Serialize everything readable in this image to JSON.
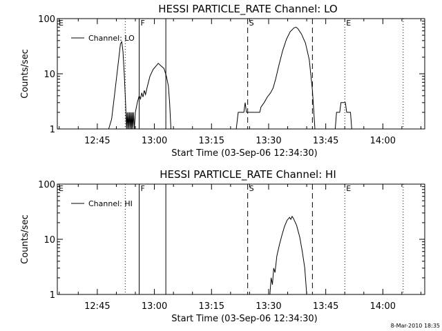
{
  "chart_data": [
    {
      "type": "line",
      "title": "HESSI PARTICLE_RATE Channel: LO",
      "xlabel": "Start Time (03-Sep-06 12:34:30)",
      "ylabel": "Counts/sec",
      "yscale": "log",
      "xlim": [
        "12:34:30",
        "14:11:00"
      ],
      "ylim": [
        1,
        100
      ],
      "x_ticks": [
        "12:45",
        "13:00",
        "13:15",
        "13:30",
        "13:45",
        "14:00"
      ],
      "y_ticks": [
        "1",
        "10",
        "100"
      ],
      "legend": "top-left",
      "grid": false,
      "series": [
        {
          "name": "Channel: LO",
          "points": [
            [
              "12:48:00",
              1
            ],
            [
              "12:48:45",
              1.5
            ],
            [
              "12:49:30",
              4
            ],
            [
              "12:50:10",
              10
            ],
            [
              "12:50:45",
              22
            ],
            [
              "12:51:05",
              35
            ],
            [
              "12:51:25",
              38
            ],
            [
              "12:51:45",
              25
            ],
            [
              "12:52:05",
              10
            ],
            [
              "12:52:25",
              3
            ],
            [
              "12:52:40",
              1
            ],
            [
              "12:52:50",
              2
            ],
            [
              "12:53:00",
              1
            ],
            [
              "12:53:10",
              2
            ],
            [
              "12:53:20",
              1
            ],
            [
              "12:53:30",
              2
            ],
            [
              "12:53:40",
              1
            ],
            [
              "12:53:50",
              2
            ],
            [
              "12:54:00",
              1
            ],
            [
              "12:54:10",
              2
            ],
            [
              "12:54:20",
              1
            ],
            [
              "12:54:30",
              2
            ],
            [
              "12:54:45",
              1
            ],
            [
              "12:55:00",
              2
            ],
            [
              "12:55:30",
              3
            ],
            [
              "12:56:00",
              4
            ],
            [
              "12:56:20",
              3.5
            ],
            [
              "12:56:40",
              4.5
            ],
            [
              "12:57:00",
              3.8
            ],
            [
              "12:57:20",
              5
            ],
            [
              "12:57:40",
              4.2
            ],
            [
              "12:58:10",
              6
            ],
            [
              "12:58:50",
              9
            ],
            [
              "12:59:40",
              12
            ],
            [
              "13:00:30",
              14
            ],
            [
              "13:01:00",
              15.5
            ],
            [
              "13:01:40",
              14
            ],
            [
              "13:02:30",
              12.5
            ],
            [
              "13:03:10",
              9
            ],
            [
              "13:03:40",
              6
            ],
            [
              "13:04:00",
              3
            ],
            [
              "13:04:20",
              1
            ],
            [
              "13:21:30",
              1
            ],
            [
              "13:22:00",
              2
            ],
            [
              "13:23:30",
              2
            ],
            [
              "13:23:50",
              3
            ],
            [
              "13:24:10",
              2
            ],
            [
              "13:25:00",
              2
            ],
            [
              "13:26:00",
              2
            ],
            [
              "13:27:00",
              2
            ],
            [
              "13:27:40",
              2
            ],
            [
              "13:28:00",
              2.5
            ],
            [
              "13:28:50",
              3
            ],
            [
              "13:29:40",
              3.8
            ],
            [
              "13:30:30",
              4.5
            ],
            [
              "13:31:10",
              5.5
            ],
            [
              "13:31:50",
              8
            ],
            [
              "13:32:40",
              14
            ],
            [
              "13:33:40",
              26
            ],
            [
              "13:34:40",
              42
            ],
            [
              "13:35:40",
              58
            ],
            [
              "13:36:40",
              68
            ],
            [
              "13:37:10",
              70
            ],
            [
              "13:37:40",
              66
            ],
            [
              "13:38:40",
              52
            ],
            [
              "13:39:40",
              36
            ],
            [
              "13:40:40",
              18
            ],
            [
              "13:41:30",
              5
            ],
            [
              "13:42:10",
              1
            ],
            [
              "13:47:30",
              1
            ],
            [
              "13:47:50",
              2
            ],
            [
              "13:48:40",
              2
            ],
            [
              "13:49:00",
              3
            ],
            [
              "13:50:10",
              3
            ],
            [
              "13:50:30",
              2
            ],
            [
              "13:51:30",
              2
            ],
            [
              "13:51:50",
              1
            ]
          ]
        }
      ],
      "markers": [
        {
          "time": "12:34:30",
          "label": "E",
          "style": "none"
        },
        {
          "time": "12:52:20",
          "label": "",
          "style": "dotted"
        },
        {
          "time": "12:56:00",
          "label": "F",
          "style": "solid"
        },
        {
          "time": "13:03:00",
          "label": "",
          "style": "solid"
        },
        {
          "time": "13:24:30",
          "label": "S",
          "style": "dashed"
        },
        {
          "time": "13:41:30",
          "label": "",
          "style": "dashed"
        },
        {
          "time": "13:50:00",
          "label": "E",
          "style": "dotted"
        },
        {
          "time": "14:05:20",
          "label": "",
          "style": "dotted"
        }
      ]
    },
    {
      "type": "line",
      "title": "HESSI PARTICLE_RATE Channel: HI",
      "xlabel": "Start Time (03-Sep-06 12:34:30)",
      "ylabel": "Counts/sec",
      "yscale": "log",
      "xlim": [
        "12:34:30",
        "14:11:00"
      ],
      "ylim": [
        1,
        100
      ],
      "x_ticks": [
        "12:45",
        "13:00",
        "13:15",
        "13:30",
        "13:45",
        "14:00"
      ],
      "y_ticks": [
        "1",
        "10",
        "100"
      ],
      "legend": "top-left",
      "grid": false,
      "series": [
        {
          "name": "Channel: HI",
          "points": [
            [
              "13:30:20",
              1
            ],
            [
              "13:30:40",
              2
            ],
            [
              "13:31:00",
              1.5
            ],
            [
              "13:31:20",
              3
            ],
            [
              "13:31:40",
              2.5
            ],
            [
              "13:32:10",
              5
            ],
            [
              "13:32:50",
              8
            ],
            [
              "13:33:30",
              12
            ],
            [
              "13:34:10",
              17
            ],
            [
              "13:34:50",
              22
            ],
            [
              "13:35:30",
              25
            ],
            [
              "13:35:50",
              23
            ],
            [
              "13:36:10",
              26
            ],
            [
              "13:36:30",
              24
            ],
            [
              "13:37:20",
              18
            ],
            [
              "13:38:10",
              11
            ],
            [
              "13:38:50",
              6
            ],
            [
              "13:39:30",
              3
            ],
            [
              "13:40:00",
              1
            ]
          ]
        }
      ],
      "markers": [
        {
          "time": "12:34:30",
          "label": "E",
          "style": "none"
        },
        {
          "time": "12:52:20",
          "label": "",
          "style": "dotted"
        },
        {
          "time": "12:56:00",
          "label": "F",
          "style": "solid"
        },
        {
          "time": "13:03:00",
          "label": "",
          "style": "solid"
        },
        {
          "time": "13:24:30",
          "label": "S",
          "style": "dashed"
        },
        {
          "time": "13:41:30",
          "label": "",
          "style": "dashed"
        },
        {
          "time": "13:50:00",
          "label": "E",
          "style": "dotted"
        },
        {
          "time": "14:05:20",
          "label": "",
          "style": "dotted"
        }
      ]
    }
  ],
  "footer": "8-Mar-2010 18:35"
}
